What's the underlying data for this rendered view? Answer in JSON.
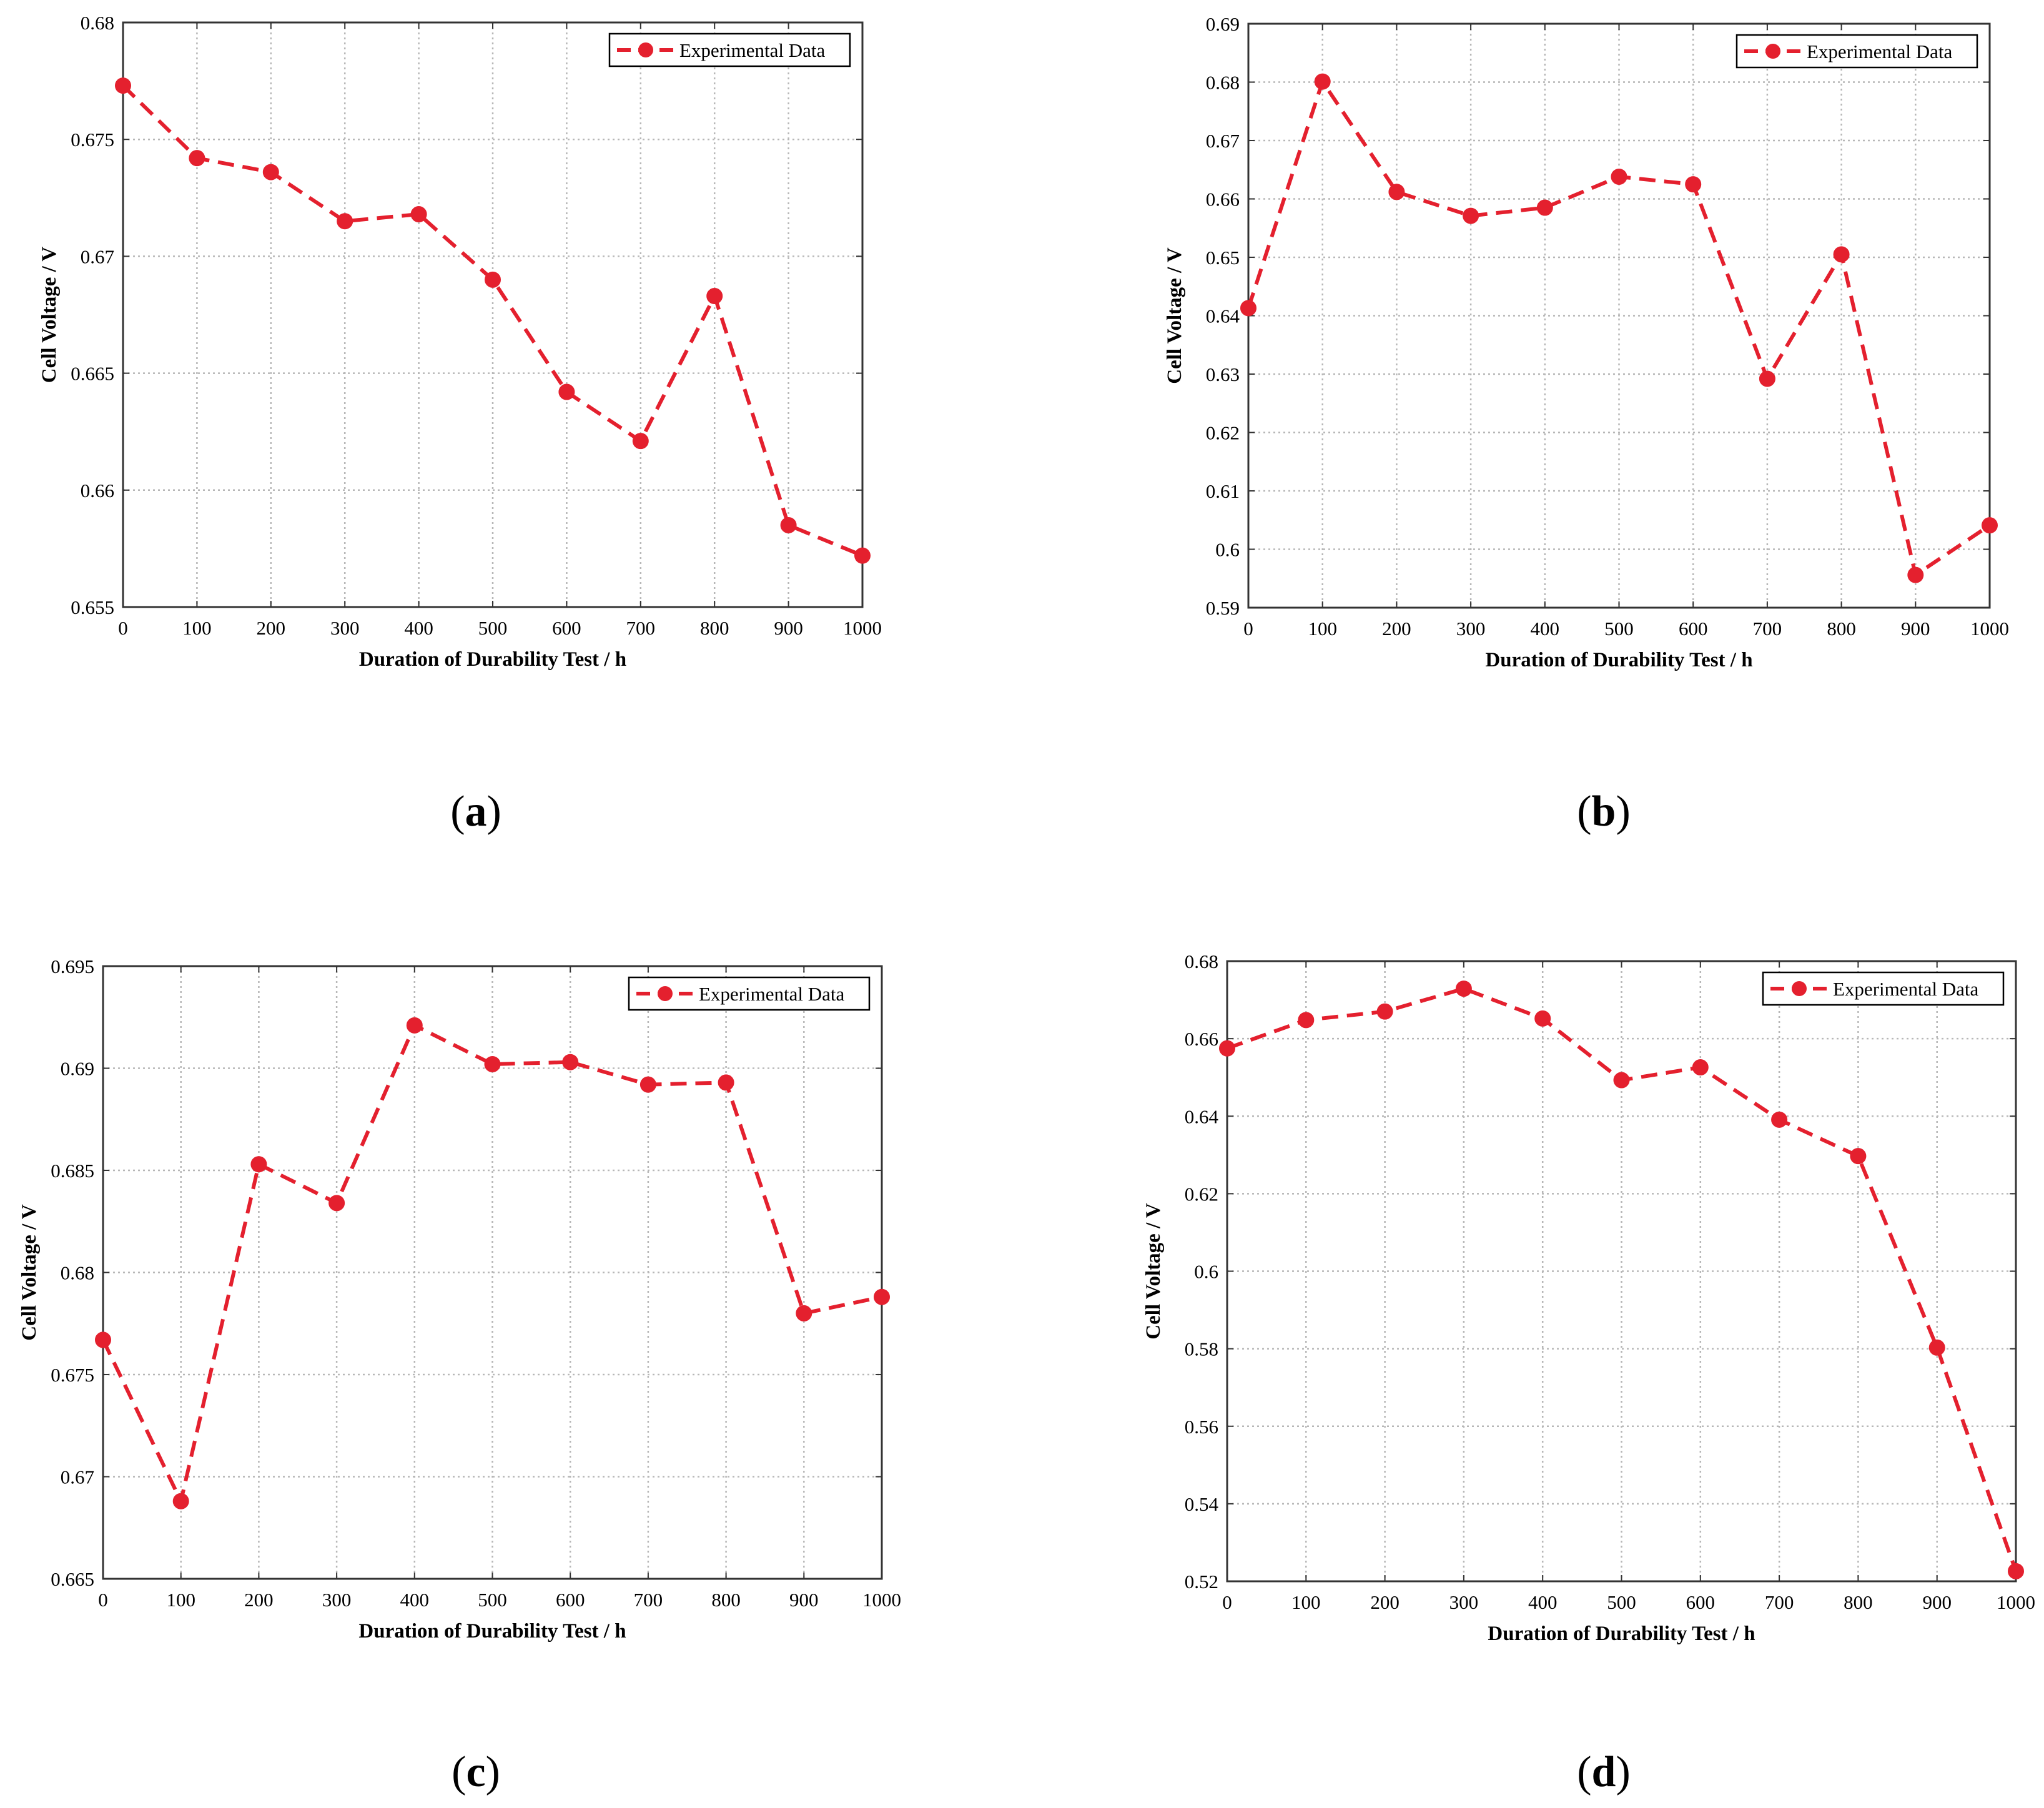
{
  "colors": {
    "series": "#e4202e",
    "grid": "#b7b7b7",
    "axis": "#333333",
    "background": "#ffffff"
  },
  "marker_icon": "filled-circle",
  "chart_data": [
    {
      "panel_label": "a",
      "type": "line",
      "xlabel": "Duration of Durability Test / h",
      "ylabel": "Cell Voltage / V",
      "xlim": [
        0,
        1000
      ],
      "ylim": [
        0.655,
        0.68
      ],
      "xticks": [
        0,
        100,
        200,
        300,
        400,
        500,
        600,
        700,
        800,
        900,
        1000
      ],
      "xtick_labels": [
        "0",
        "100",
        "200",
        "300",
        "400",
        "500",
        "600",
        "700",
        "800",
        "900",
        "1000"
      ],
      "yticks": [
        0.655,
        0.66,
        0.665,
        0.67,
        0.675,
        0.68
      ],
      "ytick_labels": [
        "0.655",
        "0.66",
        "0.665",
        "0.67",
        "0.675",
        "0.68"
      ],
      "grid": true,
      "legend_position": "top-right",
      "series": [
        {
          "name": "Experimental Data",
          "line_style": "dashed",
          "marker": "circle",
          "x": [
            0,
            100,
            200,
            300,
            400,
            500,
            600,
            700,
            800,
            900,
            1000
          ],
          "y": [
            0.6773,
            0.6742,
            0.6736,
            0.6715,
            0.6718,
            0.669,
            0.6642,
            0.6621,
            0.6683,
            0.6585,
            0.6572
          ]
        }
      ]
    },
    {
      "panel_label": "b",
      "type": "line",
      "xlabel": "Duration of Durability Test / h",
      "ylabel": "Cell Voltage / V",
      "xlim": [
        0,
        1000
      ],
      "ylim": [
        0.59,
        0.69
      ],
      "xticks": [
        0,
        100,
        200,
        300,
        400,
        500,
        600,
        700,
        800,
        900,
        1000
      ],
      "xtick_labels": [
        "0",
        "100",
        "200",
        "300",
        "400",
        "500",
        "600",
        "700",
        "800",
        "900",
        "1000"
      ],
      "yticks": [
        0.59,
        0.6,
        0.61,
        0.62,
        0.63,
        0.64,
        0.65,
        0.66,
        0.67,
        0.68,
        0.69
      ],
      "ytick_labels": [
        "0.59",
        "0.6",
        "0.61",
        "0.62",
        "0.63",
        "0.64",
        "0.65",
        "0.66",
        "0.67",
        "0.68",
        "0.69"
      ],
      "grid": true,
      "legend_position": "top-right",
      "series": [
        {
          "name": "Experimental Data",
          "line_style": "dashed",
          "marker": "circle",
          "x": [
            0,
            100,
            200,
            300,
            400,
            500,
            600,
            700,
            800,
            900,
            1000
          ],
          "y": [
            0.6413,
            0.6801,
            0.6612,
            0.6571,
            0.6585,
            0.6638,
            0.6625,
            0.6292,
            0.6505,
            0.5956,
            0.6041
          ]
        }
      ]
    },
    {
      "panel_label": "c",
      "type": "line",
      "xlabel": "Duration of Durability Test / h",
      "ylabel": "Cell Voltage / V",
      "xlim": [
        0,
        1000
      ],
      "ylim": [
        0.665,
        0.695
      ],
      "xticks": [
        0,
        100,
        200,
        300,
        400,
        500,
        600,
        700,
        800,
        900,
        1000
      ],
      "xtick_labels": [
        "0",
        "100",
        "200",
        "300",
        "400",
        "500",
        "600",
        "700",
        "800",
        "900",
        "1000"
      ],
      "yticks": [
        0.665,
        0.67,
        0.675,
        0.68,
        0.685,
        0.69,
        0.695
      ],
      "ytick_labels": [
        "0.665",
        "0.67",
        "0.675",
        "0.68",
        "0.685",
        "0.69",
        "0.695"
      ],
      "grid": true,
      "legend_position": "top-right",
      "series": [
        {
          "name": "Experimental Data",
          "line_style": "dashed",
          "marker": "circle",
          "x": [
            0,
            100,
            200,
            300,
            400,
            500,
            600,
            700,
            800,
            900,
            1000
          ],
          "y": [
            0.6767,
            0.6688,
            0.6853,
            0.6834,
            0.6921,
            0.6902,
            0.6903,
            0.6892,
            0.6893,
            0.678,
            0.6788
          ]
        }
      ]
    },
    {
      "panel_label": "d",
      "type": "line",
      "xlabel": "Duration of Durability Test / h",
      "ylabel": "Cell Voltage / V",
      "xlim": [
        0,
        1000
      ],
      "ylim": [
        0.52,
        0.68
      ],
      "xticks": [
        0,
        100,
        200,
        300,
        400,
        500,
        600,
        700,
        800,
        900,
        1000
      ],
      "xtick_labels": [
        "0",
        "100",
        "200",
        "300",
        "400",
        "500",
        "600",
        "700",
        "800",
        "900",
        "1000"
      ],
      "yticks": [
        0.52,
        0.54,
        0.56,
        0.58,
        0.6,
        0.62,
        0.64,
        0.66,
        0.68
      ],
      "ytick_labels": [
        "0.52",
        "0.54",
        "0.56",
        "0.58",
        "0.6",
        "0.62",
        "0.64",
        "0.66",
        "0.68"
      ],
      "grid": true,
      "legend_position": "top-right",
      "series": [
        {
          "name": "Experimental Data",
          "line_style": "dashed",
          "marker": "circle",
          "x": [
            0,
            100,
            200,
            300,
            400,
            500,
            600,
            700,
            800,
            900,
            1000
          ],
          "y": [
            0.6575,
            0.6648,
            0.667,
            0.6729,
            0.6652,
            0.6493,
            0.6526,
            0.6391,
            0.6297,
            0.5803,
            0.5226
          ]
        }
      ]
    }
  ]
}
